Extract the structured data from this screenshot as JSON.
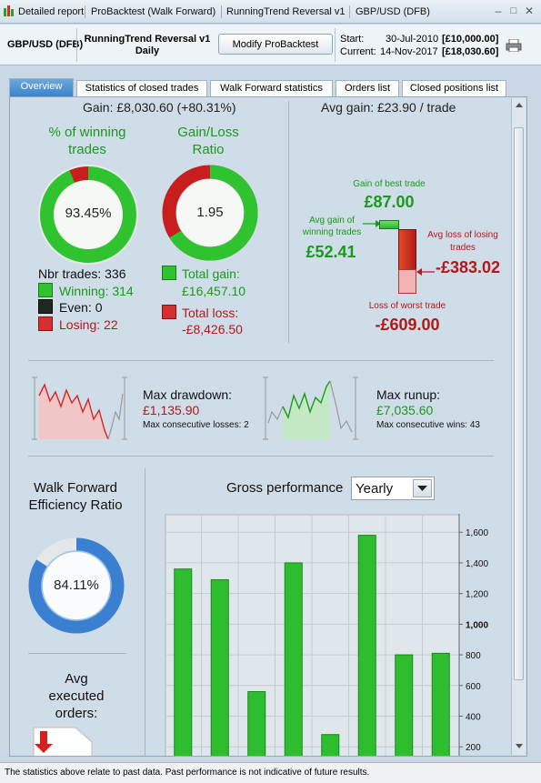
{
  "window": {
    "titles": [
      "Detailed report",
      "ProBacktest (Walk Forward)",
      "RunningTrend Reversal v1",
      "GBP/USD (DFB)"
    ]
  },
  "header": {
    "pair": "GBP/USD (DFB)",
    "strategy": "RunningTrend Reversal v1",
    "timeframe": "Daily",
    "modify_label": "Modify ProBacktest",
    "start_label": "Start:",
    "start_date": "30-Jul-2010",
    "start_value": "[£10,000.00]",
    "current_label": "Current:",
    "current_date": "14-Nov-2017",
    "current_value": "[£18,030.60]"
  },
  "tabs": [
    {
      "label": "Overview",
      "active": true
    },
    {
      "label": "Statistics of closed trades",
      "active": false
    },
    {
      "label": "Walk Forward statistics",
      "active": false
    },
    {
      "label": "Orders list",
      "active": false
    },
    {
      "label": "Closed positions list",
      "active": false
    }
  ],
  "overview": {
    "gain": "Gain: £8,030.60 (+80.31%)",
    "avg_gain": "Avg gain: £23.90 / trade",
    "winning_title": "% of winning trades",
    "winning_pct_label": "93.45%",
    "winning_fraction": 0.9345,
    "gainloss_title": "Gain/Loss Ratio",
    "gainloss_value": "1.95",
    "gainloss_fraction": 0.661,
    "nbr_trades": "Nbr trades: 336",
    "winning": "Winning: 314",
    "even": "Even: 0",
    "losing": "Losing: 22",
    "total_gain_label": "Total gain:",
    "total_gain_value": "£16,457.10",
    "total_loss_label": "Total loss:",
    "total_loss_value": "-£8,426.50",
    "best_trade_label": "Gain of best trade",
    "best_trade_value": "£87.00",
    "avg_gain_win_label": "Avg gain of winning trades",
    "avg_gain_win_value": "£52.41",
    "avg_loss_label": "Avg loss of losing trades",
    "avg_loss_value": "-£383.02",
    "worst_trade_label": "Loss of worst trade",
    "worst_trade_value": "-£609.00"
  },
  "drawdown": {
    "max_drawdown_label": "Max drawdown:",
    "max_drawdown_value": "£1,135.90",
    "max_consec_losses": "Max consecutive losses: 2",
    "max_runup_label": "Max runup:",
    "max_runup_value": "£7,035.60",
    "max_consec_wins": "Max consecutive wins: 43"
  },
  "walk_forward": {
    "title": "Walk Forward Efficiency Ratio",
    "value_label": "84.11%",
    "fraction": 0.8411,
    "avg_orders_title": "Avg executed orders:"
  },
  "gross": {
    "title": "Gross performance",
    "period_selected": "Yearly"
  },
  "chart_data": {
    "type": "bar",
    "title": "Gross performance",
    "categories": [
      "",
      "",
      "",
      "",
      "",
      "",
      "",
      ""
    ],
    "values": [
      1360,
      1290,
      560,
      1400,
      280,
      1580,
      800,
      810
    ],
    "ylim": [
      130,
      1720
    ],
    "yticks": [
      200,
      400,
      600,
      800,
      1000,
      1200,
      1400,
      1600
    ],
    "ytick_labels": [
      "200",
      "400",
      "600",
      "800",
      "1,000",
      "1,200",
      "1,400",
      "1,600"
    ],
    "bar_color": "#2ebd2e",
    "grid": true
  },
  "colors": {
    "green": "#2fc42f",
    "red": "#c81e1e",
    "blue": "#3a7fd0",
    "accent": "#3b80c7"
  },
  "status": {
    "text": "The statistics above relate to past data. Past performance is not indicative of future results."
  }
}
